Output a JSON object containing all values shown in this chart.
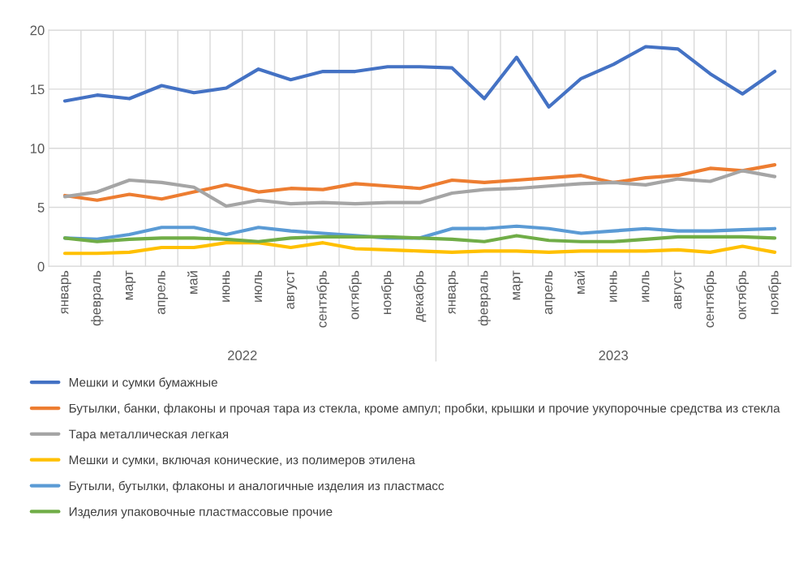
{
  "chart_data": {
    "type": "line",
    "categories": [
      "январь",
      "февраль",
      "март",
      "апрель",
      "май",
      "июнь",
      "июль",
      "август",
      "сентябрь",
      "октябрь",
      "ноябрь",
      "декабрь",
      "январь",
      "февраль",
      "март",
      "апрель",
      "май",
      "июнь",
      "июль",
      "август",
      "сентябрь",
      "октябрь",
      "ноябрь"
    ],
    "annotations": [
      "2022",
      "2023"
    ],
    "series": [
      {
        "name": "Мешки и сумки бумажные",
        "color": "#4472c4",
        "values": [
          14.0,
          14.5,
          14.2,
          15.3,
          14.7,
          15.1,
          16.7,
          15.8,
          16.5,
          16.5,
          16.9,
          16.9,
          16.8,
          14.2,
          17.7,
          13.5,
          15.9,
          17.1,
          18.6,
          18.4,
          16.3,
          14.6,
          16.5
        ]
      },
      {
        "name": "Бутылки, банки, флаконы и прочая тара из стекла, кроме ампул; пробки, крышки и прочие укупорочные средства из стекла",
        "color": "#ed7d31",
        "values": [
          6.0,
          5.6,
          6.1,
          5.7,
          6.3,
          6.9,
          6.3,
          6.6,
          6.5,
          7.0,
          6.8,
          6.6,
          7.3,
          7.1,
          7.3,
          7.5,
          7.7,
          7.1,
          7.5,
          7.7,
          8.3,
          8.1,
          8.6
        ]
      },
      {
        "name": "Тара металлическая легкая",
        "color": "#a5a5a5",
        "values": [
          5.9,
          6.3,
          7.3,
          7.1,
          6.7,
          5.1,
          5.6,
          5.3,
          5.4,
          5.3,
          5.4,
          5.4,
          6.2,
          6.5,
          6.6,
          6.8,
          7.0,
          7.1,
          6.9,
          7.4,
          7.2,
          8.1,
          7.6
        ]
      },
      {
        "name": "Мешки и сумки, включая конические, из полимеров этилена",
        "color": "#ffc000",
        "values": [
          1.1,
          1.1,
          1.2,
          1.6,
          1.6,
          2.0,
          2.0,
          1.6,
          2.0,
          1.5,
          1.4,
          1.3,
          1.2,
          1.3,
          1.3,
          1.2,
          1.3,
          1.3,
          1.3,
          1.4,
          1.2,
          1.7,
          1.2
        ]
      },
      {
        "name": "Бутыли, бутылки, флаконы и аналогичные изделия из пластмасс",
        "color": "#5b9bd5",
        "values": [
          2.4,
          2.3,
          2.7,
          3.3,
          3.3,
          2.7,
          3.3,
          3.0,
          2.8,
          2.6,
          2.4,
          2.4,
          3.2,
          3.2,
          3.4,
          3.2,
          2.8,
          3.0,
          3.2,
          3.0,
          3.0,
          3.1,
          3.2
        ]
      },
      {
        "name": "Изделия упаковочные пластмассовые прочие",
        "color": "#70ad47",
        "values": [
          2.4,
          2.1,
          2.3,
          2.4,
          2.4,
          2.3,
          2.1,
          2.4,
          2.5,
          2.5,
          2.5,
          2.4,
          2.3,
          2.1,
          2.6,
          2.2,
          2.1,
          2.1,
          2.3,
          2.5,
          2.5,
          2.5,
          2.4
        ]
      }
    ],
    "ylim": [
      0,
      20
    ],
    "yticks": [
      0,
      5,
      10,
      15,
      20
    ],
    "grid": true,
    "legend": "bottom",
    "marker": "none",
    "line_style": "solid"
  }
}
